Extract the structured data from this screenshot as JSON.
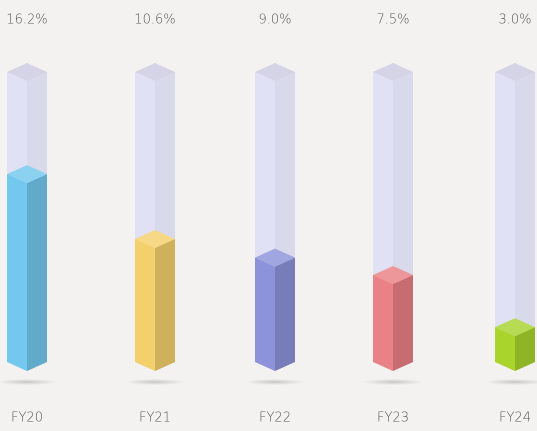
{
  "chart_data": {
    "type": "bar3d",
    "categories": [
      "FY20",
      "FY21",
      "FY22",
      "FY23",
      "FY24"
    ],
    "values": [
      16.2,
      10.6,
      9.0,
      7.5,
      3.0
    ],
    "value_labels": [
      "16.2%",
      "10.6%",
      "9.0%",
      "7.5%",
      "3.0%"
    ],
    "colors": [
      "#72c8ee",
      "#f4d06c",
      "#8c93da",
      "#ea8186",
      "#a8d42c"
    ],
    "ylim": [
      0,
      25
    ]
  }
}
